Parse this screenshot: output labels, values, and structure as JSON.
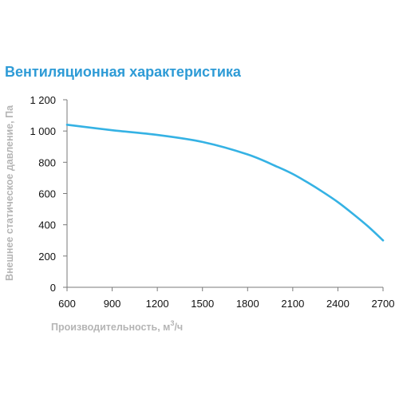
{
  "colors": {
    "title": "#2e9bd6",
    "curve": "#35b2e4",
    "axis": "#7a7a7a",
    "axis_label": "#b5b5b5",
    "tick_text": "#111111"
  },
  "chart_data": {
    "type": "line",
    "title": "Вентиляционная характеристика",
    "xlabel": "Производительность, м",
    "xlabel_sup": "3",
    "xlabel_suffix": "/ч",
    "ylabel": "Внешнее статическое давление, Па",
    "xlim": [
      600,
      2700
    ],
    "ylim": [
      0,
      1200
    ],
    "x_ticks": [
      600,
      900,
      1200,
      1500,
      1800,
      2100,
      2400,
      2700
    ],
    "x_tick_labels": [
      "600",
      "900",
      "1200",
      "1500",
      "1800",
      "2100",
      "2400",
      "2700"
    ],
    "y_ticks": [
      0,
      200,
      400,
      600,
      800,
      1000,
      1200
    ],
    "y_tick_labels": [
      "0",
      "200",
      "400",
      "600",
      "800",
      "1 000",
      "1 200"
    ],
    "grid": false,
    "series": [
      {
        "x": [
          600,
          900,
          1200,
          1500,
          1800,
          2000,
          2100,
          2200,
          2300,
          2400,
          2500,
          2600,
          2700
        ],
        "y": [
          1040,
          1005,
          975,
          930,
          850,
          770,
          725,
          670,
          610,
          545,
          470,
          390,
          300
        ]
      }
    ]
  }
}
